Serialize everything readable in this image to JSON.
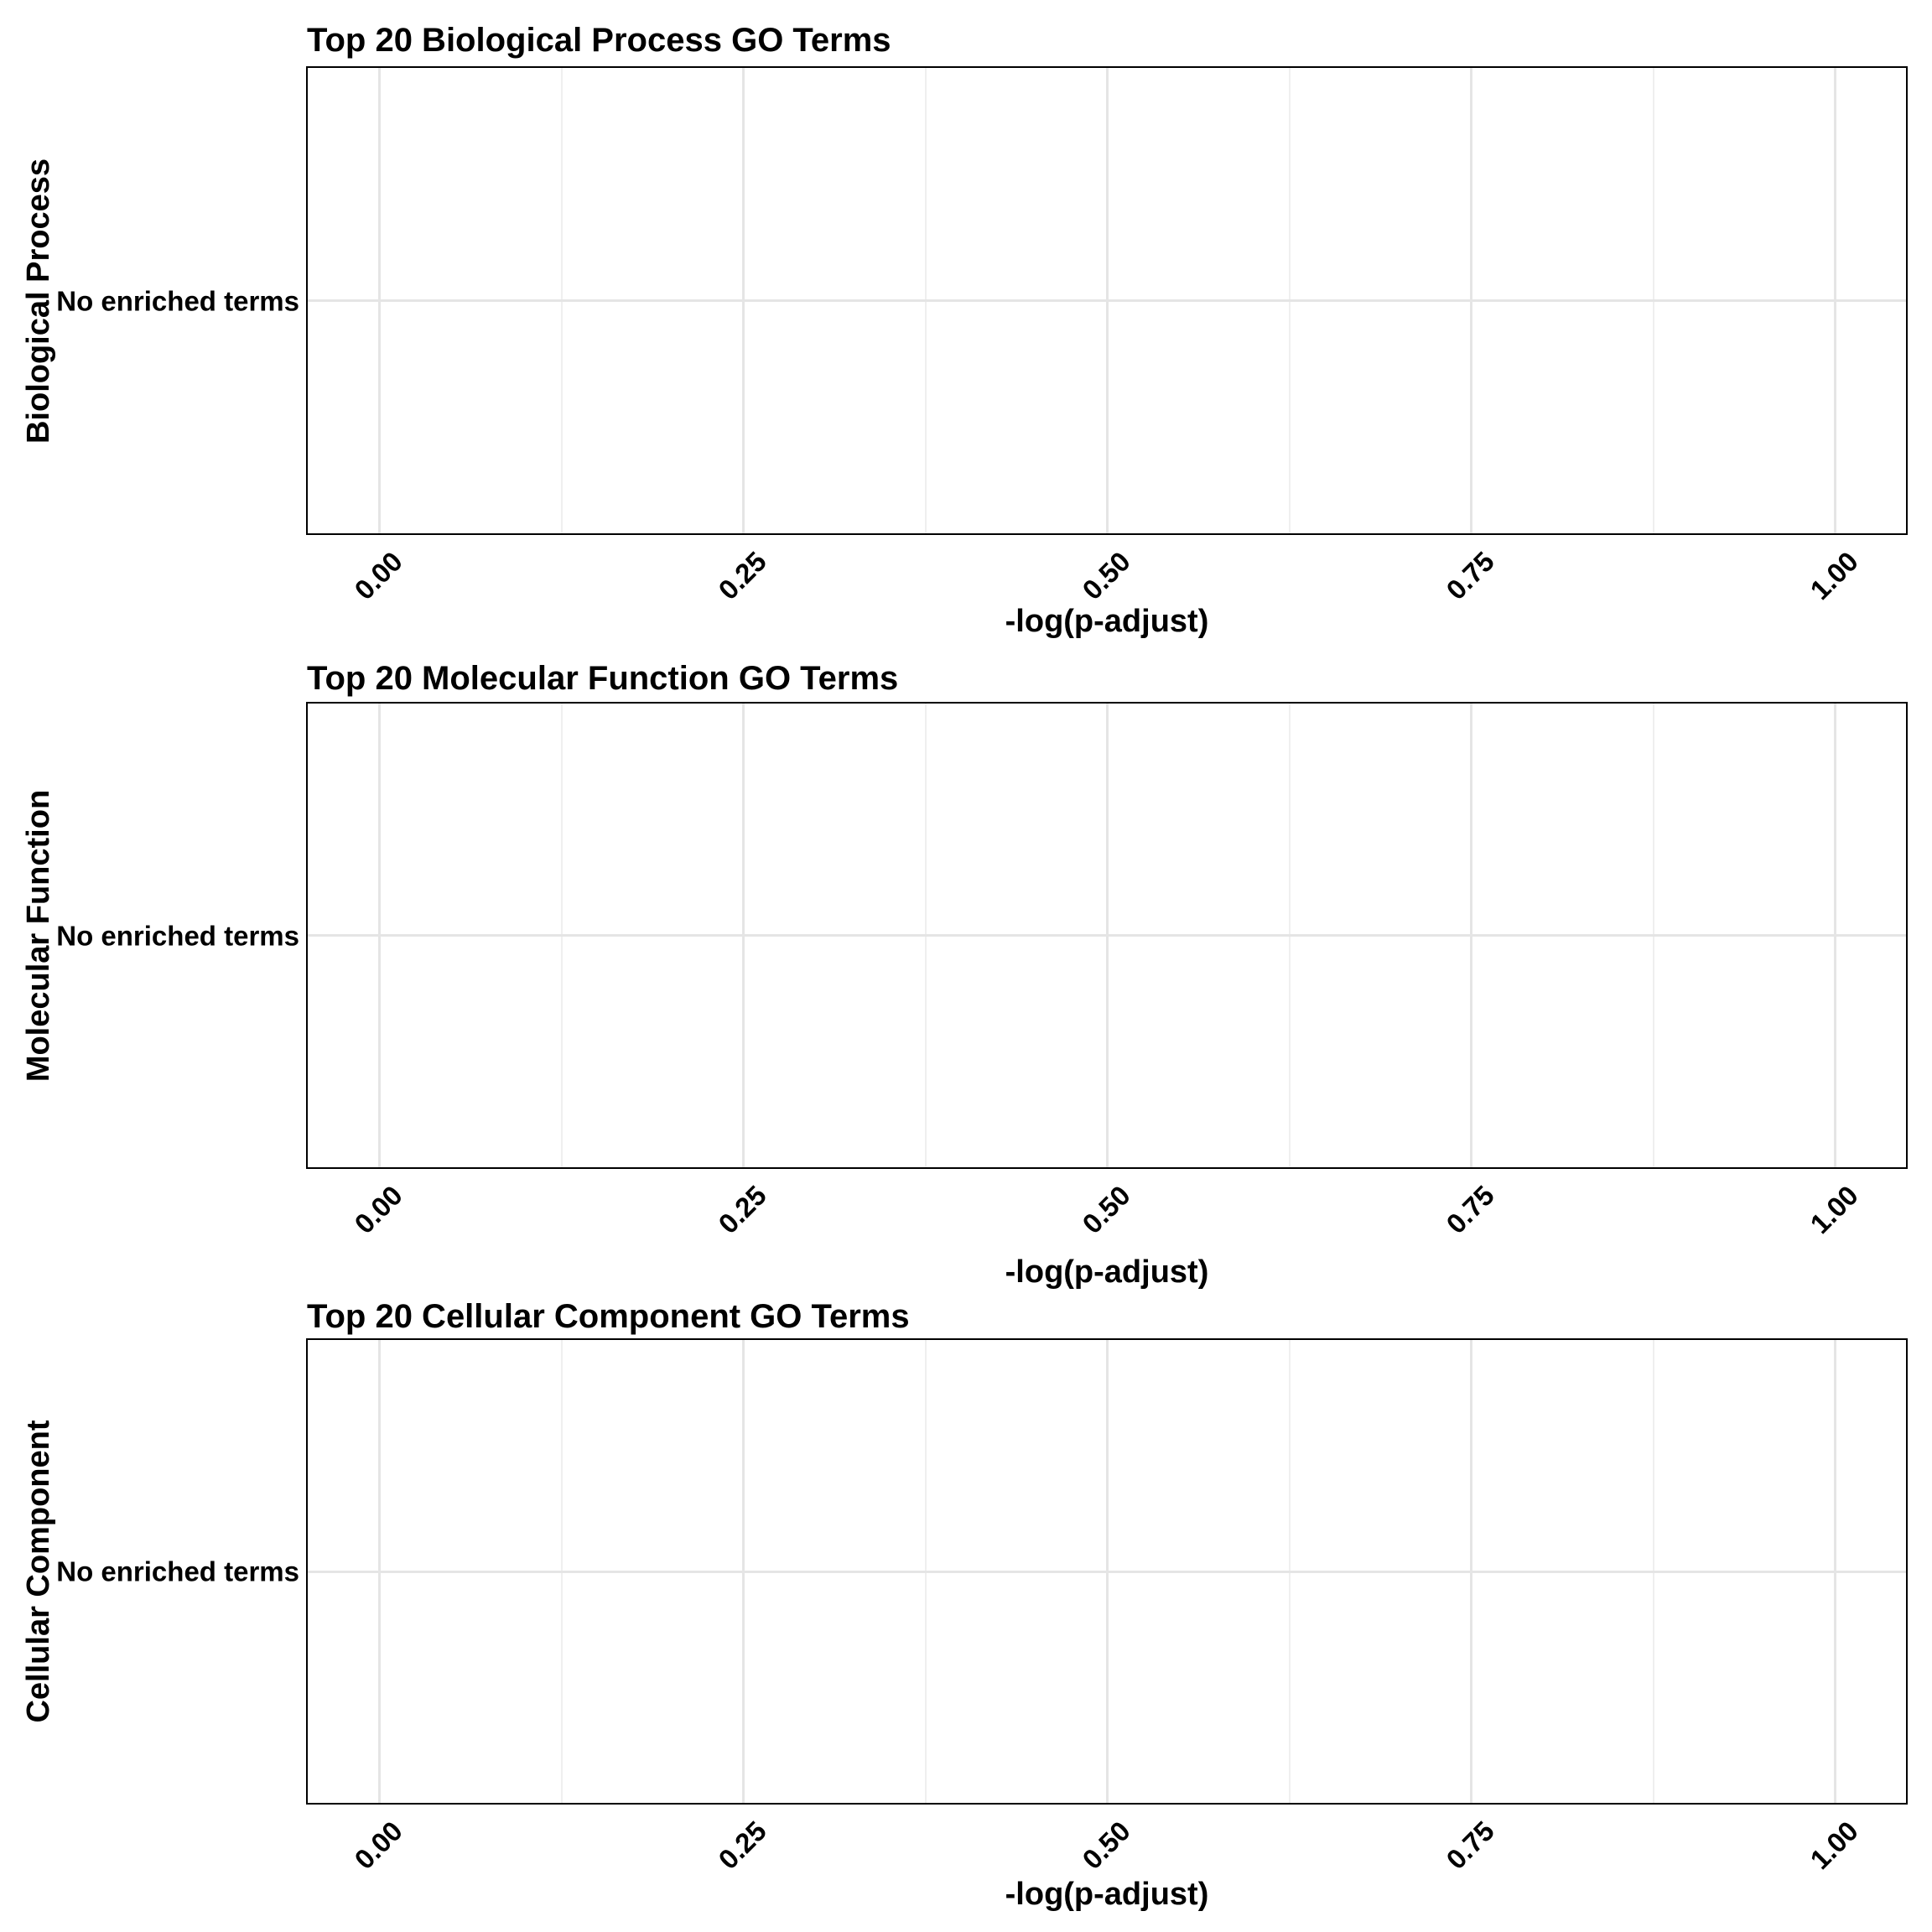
{
  "figure": {
    "background": "#ffffff",
    "text_color": "#000000",
    "panel_border_color": "#000000",
    "grid_major_color": "#e5e5e5",
    "grid_minor_color": "#efefef"
  },
  "charts": [
    {
      "id": "biological-process",
      "title": "Top 20 Biological Process GO Terms",
      "y_axis_title": "Biological Process",
      "y_tick_label": "No enriched terms",
      "x_axis_title": "-log(p-adjust)",
      "x_tick_labels": [
        "0.00",
        "0.25",
        "0.50",
        "0.75",
        "1.00"
      ]
    },
    {
      "id": "molecular-function",
      "title": "Top 20 Molecular Function GO Terms",
      "y_axis_title": "Molecular Function",
      "y_tick_label": "No enriched terms",
      "x_axis_title": "-log(p-adjust)",
      "x_tick_labels": [
        "0.00",
        "0.25",
        "0.50",
        "0.75",
        "1.00"
      ]
    },
    {
      "id": "cellular-component",
      "title": "Top 20 Cellular Component GO Terms",
      "y_axis_title": "Cellular Component",
      "y_tick_label": "No enriched terms",
      "x_axis_title": "-log(p-adjust)",
      "x_tick_labels": [
        "0.00",
        "0.25",
        "0.50",
        "0.75",
        "1.00"
      ]
    }
  ],
  "chart_data": [
    {
      "type": "bar",
      "orientation": "horizontal",
      "title": "Top 20 Biological Process GO Terms",
      "xlabel": "-log(p-adjust)",
      "ylabel": "Biological Process",
      "categories": [
        "No enriched terms"
      ],
      "values": [
        null
      ],
      "x_ticks": [
        0.0,
        0.25,
        0.5,
        0.75,
        1.0
      ],
      "xlim": [
        -0.05,
        1.05
      ],
      "grid": "vertical major + minor, horizontal major at category row",
      "legend": false,
      "note": "Empty panel - no bars plotted (no enriched GO terms)"
    },
    {
      "type": "bar",
      "orientation": "horizontal",
      "title": "Top 20 Molecular Function GO Terms",
      "xlabel": "-log(p-adjust)",
      "ylabel": "Molecular Function",
      "categories": [
        "No enriched terms"
      ],
      "values": [
        null
      ],
      "x_ticks": [
        0.0,
        0.25,
        0.5,
        0.75,
        1.0
      ],
      "xlim": [
        -0.05,
        1.05
      ],
      "grid": "vertical major + minor, horizontal major at category row",
      "legend": false,
      "note": "Empty panel - no bars plotted (no enriched GO terms)"
    },
    {
      "type": "bar",
      "orientation": "horizontal",
      "title": "Top 20 Cellular Component GO Terms",
      "xlabel": "-log(p-adjust)",
      "ylabel": "Cellular Component",
      "categories": [
        "No enriched terms"
      ],
      "values": [
        null
      ],
      "x_ticks": [
        0.0,
        0.25,
        0.5,
        0.75,
        1.0
      ],
      "xlim": [
        -0.05,
        1.05
      ],
      "grid": "vertical major + minor, horizontal major at category row",
      "legend": false,
      "note": "Empty panel - no bars plotted (no enriched GO terms)"
    }
  ]
}
